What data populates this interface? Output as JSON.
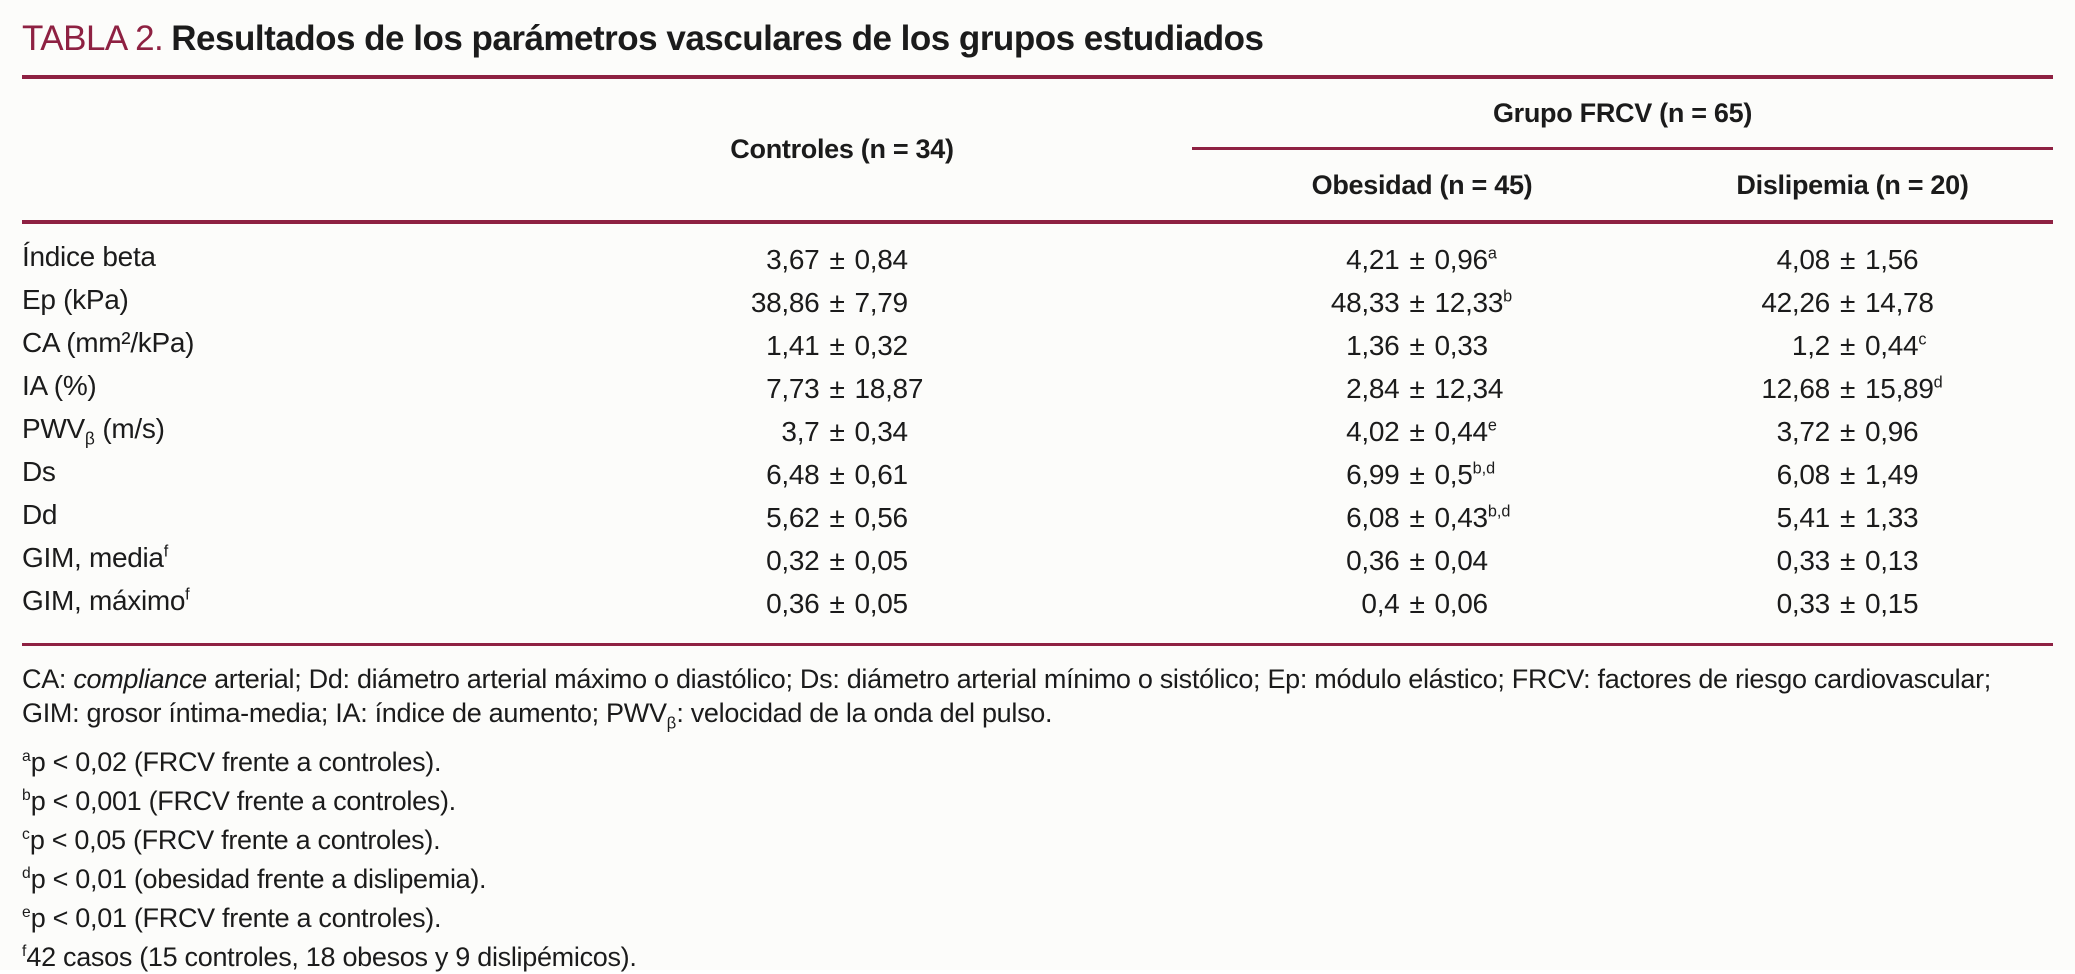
{
  "title": {
    "tag": "TABLA 2.",
    "text": "Resultados de los parámetros vasculares de los grupos estudiados"
  },
  "table": {
    "pm": "±",
    "header": {
      "controles": "Controles (n = 34)",
      "group": "Grupo FRCV (n = 65)",
      "obesidad": "Obesidad (n = 45)",
      "dislipemia": "Dislipemia (n = 20)"
    },
    "rows": [
      {
        "label": "Índice beta",
        "label_sub": "",
        "label_tail": "",
        "label_sup": "",
        "c": {
          "m": "3,67",
          "sd": "0,84",
          "sup": ""
        },
        "o": {
          "m": "4,21",
          "sd": "0,96",
          "sup": "a"
        },
        "d": {
          "m": "4,08",
          "sd": "1,56",
          "sup": ""
        }
      },
      {
        "label": "Ep (kPa)",
        "label_sub": "",
        "label_tail": "",
        "label_sup": "",
        "c": {
          "m": "38,86",
          "sd": "7,79",
          "sup": ""
        },
        "o": {
          "m": "48,33",
          "sd": "12,33",
          "sup": "b"
        },
        "d": {
          "m": "42,26",
          "sd": "14,78",
          "sup": ""
        }
      },
      {
        "label": "CA (mm²/kPa)",
        "label_sub": "",
        "label_tail": "",
        "label_sup": "",
        "c": {
          "m": "1,41",
          "sd": "0,32",
          "sup": ""
        },
        "o": {
          "m": "1,36",
          "sd": "0,33",
          "sup": ""
        },
        "d": {
          "m": "1,2",
          "sd": "0,44",
          "sup": "c"
        }
      },
      {
        "label": "IA (%)",
        "label_sub": "",
        "label_tail": "",
        "label_sup": "",
        "c": {
          "m": "7,73",
          "sd": "18,87",
          "sup": ""
        },
        "o": {
          "m": "2,84",
          "sd": "12,34",
          "sup": ""
        },
        "d": {
          "m": "12,68",
          "sd": "15,89",
          "sup": "d"
        }
      },
      {
        "label": "PWV",
        "label_sub": "β",
        "label_tail": " (m/s)",
        "label_sup": "",
        "c": {
          "m": "3,7",
          "sd": "0,34",
          "sup": ""
        },
        "o": {
          "m": "4,02",
          "sd": "0,44",
          "sup": "e"
        },
        "d": {
          "m": "3,72",
          "sd": "0,96",
          "sup": ""
        }
      },
      {
        "label": "Ds",
        "label_sub": "",
        "label_tail": "",
        "label_sup": "",
        "c": {
          "m": "6,48",
          "sd": "0,61",
          "sup": ""
        },
        "o": {
          "m": "6,99",
          "sd": "0,5",
          "sup": "b,d"
        },
        "d": {
          "m": "6,08",
          "sd": "1,49",
          "sup": ""
        }
      },
      {
        "label": "Dd",
        "label_sub": "",
        "label_tail": "",
        "label_sup": "",
        "c": {
          "m": "5,62",
          "sd": "0,56",
          "sup": ""
        },
        "o": {
          "m": "6,08",
          "sd": "0,43",
          "sup": "b,d"
        },
        "d": {
          "m": "5,41",
          "sd": "1,33",
          "sup": ""
        }
      },
      {
        "label": "GIM, media",
        "label_sub": "",
        "label_tail": "",
        "label_sup": "f",
        "c": {
          "m": "0,32",
          "sd": "0,05",
          "sup": ""
        },
        "o": {
          "m": "0,36",
          "sd": "0,04",
          "sup": ""
        },
        "d": {
          "m": "0,33",
          "sd": "0,13",
          "sup": ""
        }
      },
      {
        "label": "GIM, máximo",
        "label_sub": "",
        "label_tail": "",
        "label_sup": "f",
        "c": {
          "m": "0,36",
          "sd": "0,05",
          "sup": ""
        },
        "o": {
          "m": "0,4",
          "sd": "0,06",
          "sup": ""
        },
        "d": {
          "m": "0,33",
          "sd": "0,15",
          "sup": ""
        }
      }
    ]
  },
  "footnotes": {
    "abbr1": {
      "pre": "CA: ",
      "italic": "compliance",
      "post": " arterial; Dd: diámetro arterial máximo o diastólico; Ds: diámetro arterial mínimo o sistólico; Ep: módulo elástico; FRCV: factores de riesgo cardiovascular;"
    },
    "abbr2": {
      "pre": "GIM: grosor íntima-media; IA: índice de aumento; PWV",
      "sub": "β",
      "post": ": velocidad de la onda del pulso."
    },
    "sups": [
      {
        "sup": "a",
        "text": "p < 0,02 (FRCV frente a controles)."
      },
      {
        "sup": "b",
        "text": "p < 0,001 (FRCV frente a controles)."
      },
      {
        "sup": "c",
        "text": "p < 0,05 (FRCV frente a controles)."
      },
      {
        "sup": "d",
        "text": "p < 0,01 (obesidad frente a dislipemia)."
      },
      {
        "sup": "e",
        "text": "p < 0,01 (FRCV frente a controles)."
      },
      {
        "sup": "f",
        "text": "42 casos (15 controles, 18 obesos y 9 dislipémicos)."
      }
    ]
  },
  "colors": {
    "accent": "#8e2142",
    "text": "#1b1b1b",
    "background": "#fcfcfa"
  }
}
